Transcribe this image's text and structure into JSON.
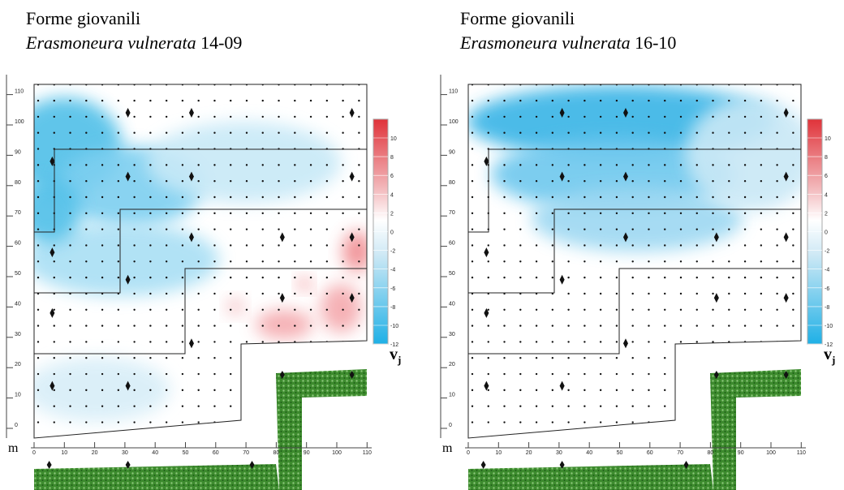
{
  "panels": [
    {
      "title": "Forme giovanili",
      "species": "Erasmoneura vulnerata",
      "sample": "14-09",
      "x_unit": "m",
      "xticks": [
        0,
        10,
        20,
        30,
        40,
        50,
        60,
        70,
        80,
        90,
        100,
        110
      ],
      "yticks": [
        0,
        10,
        20,
        30,
        40,
        50,
        60,
        70,
        80,
        90,
        100,
        110
      ],
      "colorbar_ticks": [
        10,
        8,
        6,
        4,
        2,
        0,
        -2,
        -4,
        -6,
        -8,
        -10,
        -12
      ],
      "colorbar_label": "v",
      "colorbar_subscript": "j"
    },
    {
      "title": "Forme giovanili",
      "species": "Erasmoneura vulnerata",
      "sample": "16-10",
      "x_unit": "m",
      "xticks": [
        0,
        10,
        20,
        30,
        40,
        50,
        60,
        70,
        80,
        90,
        100,
        110
      ],
      "yticks": [
        0,
        10,
        20,
        30,
        40,
        50,
        60,
        70,
        80,
        90,
        100,
        110
      ],
      "colorbar_ticks": [
        10,
        8,
        6,
        4,
        2,
        0,
        -2,
        -4,
        -6,
        -8,
        -10,
        -12
      ],
      "colorbar_label": "v",
      "colorbar_subscript": "j"
    }
  ]
}
